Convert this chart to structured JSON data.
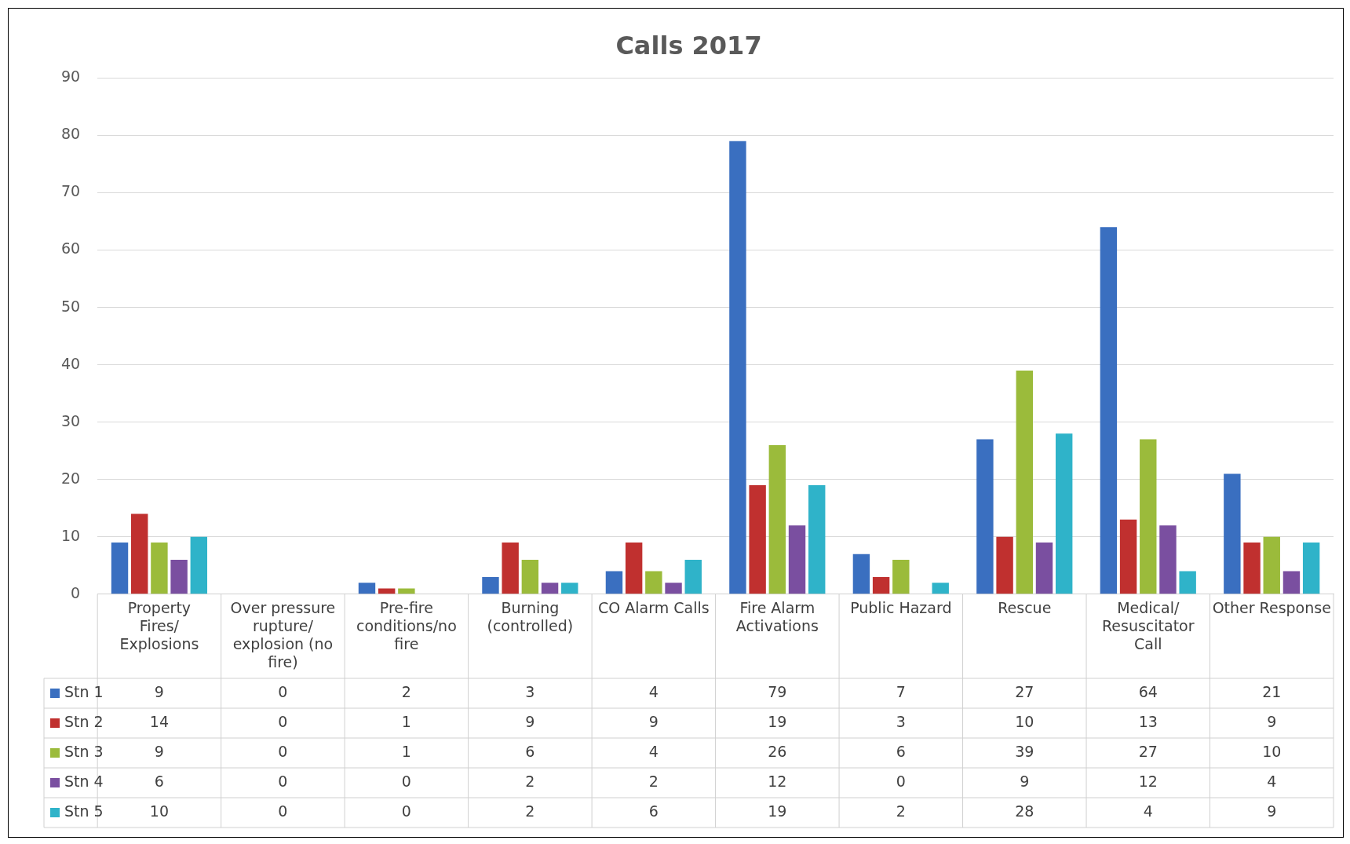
{
  "chart_data": {
    "type": "bar",
    "title": "Calls 2017",
    "categories": [
      "Property Fires/Explosions",
      "Over pressure rupture/explosion (no fire)",
      "Pre-fire conditions/no fire",
      "Burning (controlled)",
      "CO Alarm Calls",
      "Fire Alarm Activations",
      "Public Hazard",
      "Rescue",
      "Medical/Resuscitator Call",
      "Other Response"
    ],
    "series": [
      {
        "name": "Stn 1",
        "color": "#3a6fc0",
        "values": [
          9,
          0,
          2,
          3,
          4,
          79,
          7,
          27,
          64,
          21
        ]
      },
      {
        "name": "Stn 2",
        "color": "#c0302f",
        "values": [
          14,
          0,
          1,
          9,
          9,
          19,
          3,
          10,
          13,
          9
        ]
      },
      {
        "name": "Stn 3",
        "color": "#9bbb3b",
        "values": [
          9,
          0,
          1,
          6,
          4,
          26,
          6,
          39,
          27,
          10
        ]
      },
      {
        "name": "Stn 4",
        "color": "#7a4fa0",
        "values": [
          6,
          0,
          0,
          2,
          2,
          12,
          0,
          9,
          12,
          4
        ]
      },
      {
        "name": "Stn 5",
        "color": "#2fb3c9",
        "values": [
          10,
          0,
          0,
          2,
          6,
          19,
          2,
          28,
          4,
          9
        ]
      }
    ],
    "ylim": [
      0,
      90
    ],
    "yticks": [
      0,
      10,
      20,
      30,
      40,
      50,
      60,
      70,
      80,
      90
    ],
    "grid": "y",
    "legend": "bottom left",
    "data_labels": true
  }
}
